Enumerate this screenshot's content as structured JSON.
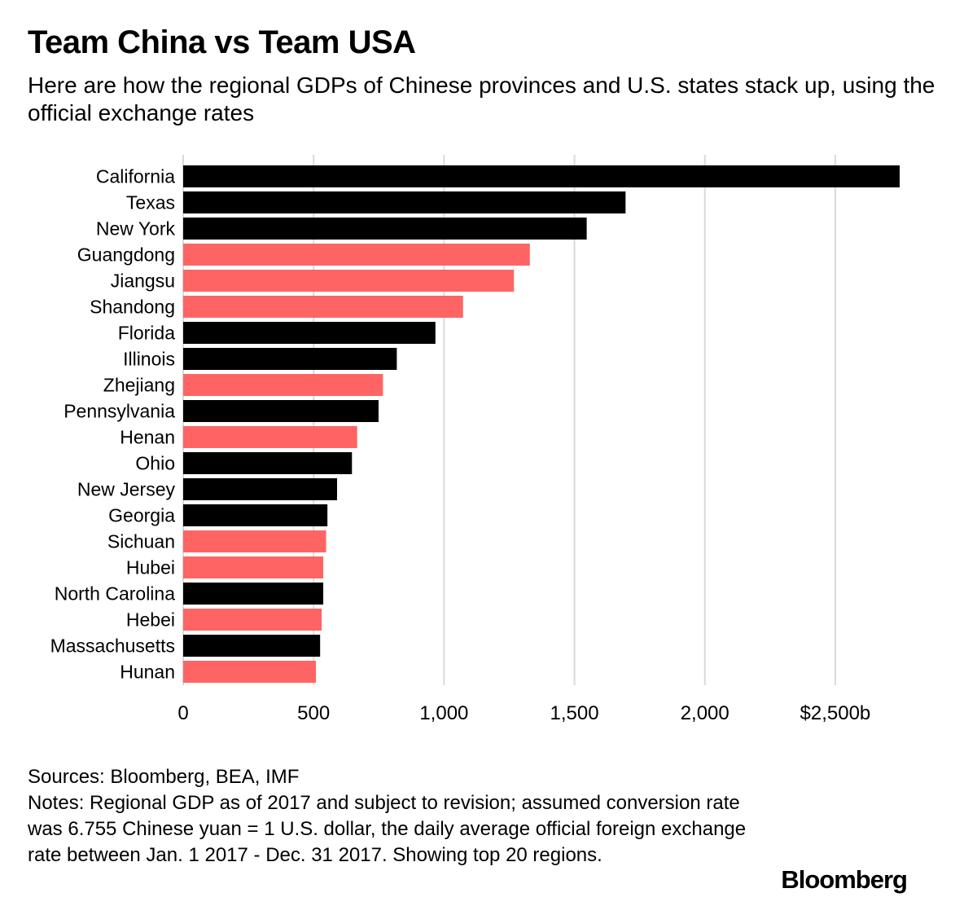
{
  "header": {
    "title": "Team China vs Team USA",
    "subtitle": "Here are how the regional GDPs of Chinese provinces and U.S. states stack up, using the official exchange rates"
  },
  "chart_data": {
    "type": "bar",
    "orientation": "horizontal",
    "categories": [
      "California",
      "Texas",
      "New York",
      "Guangdong",
      "Jiangsu",
      "Shandong",
      "Florida",
      "Illinois",
      "Zhejiang",
      "Pennsylvania",
      "Henan",
      "Ohio",
      "New Jersey",
      "Georgia",
      "Sichuan",
      "Hubei",
      "North Carolina",
      "Hebei",
      "Massachusetts",
      "Hunan"
    ],
    "values": [
      2747,
      1696,
      1547,
      1329,
      1268,
      1073,
      967,
      819,
      766,
      749,
      667,
      647,
      590,
      553,
      548,
      537,
      537,
      531,
      525,
      509
    ],
    "groups": [
      "us",
      "us",
      "us",
      "cn",
      "cn",
      "cn",
      "us",
      "us",
      "cn",
      "us",
      "cn",
      "us",
      "us",
      "us",
      "cn",
      "cn",
      "us",
      "cn",
      "us",
      "cn"
    ],
    "colors": {
      "us": "#000000",
      "cn": "#ff6464"
    },
    "xlim": [
      0,
      2750
    ],
    "xticks": [
      0,
      500,
      1000,
      1500,
      2000,
      2500
    ],
    "xtick_labels": [
      "0",
      "500",
      "1,000",
      "1,500",
      "2,000",
      "$2,500b"
    ],
    "grid": true
  },
  "footer": {
    "sources": "Sources: Bloomberg, BEA, IMF",
    "notes": "Notes: Regional GDP as of 2017 and subject to revision; assumed conversion rate was 6.755 Chinese yuan = 1 U.S. dollar, the daily average official foreign exchange rate between Jan. 1 2017 - Dec. 31 2017. Showing top 20 regions.",
    "logo": "Bloomberg"
  }
}
